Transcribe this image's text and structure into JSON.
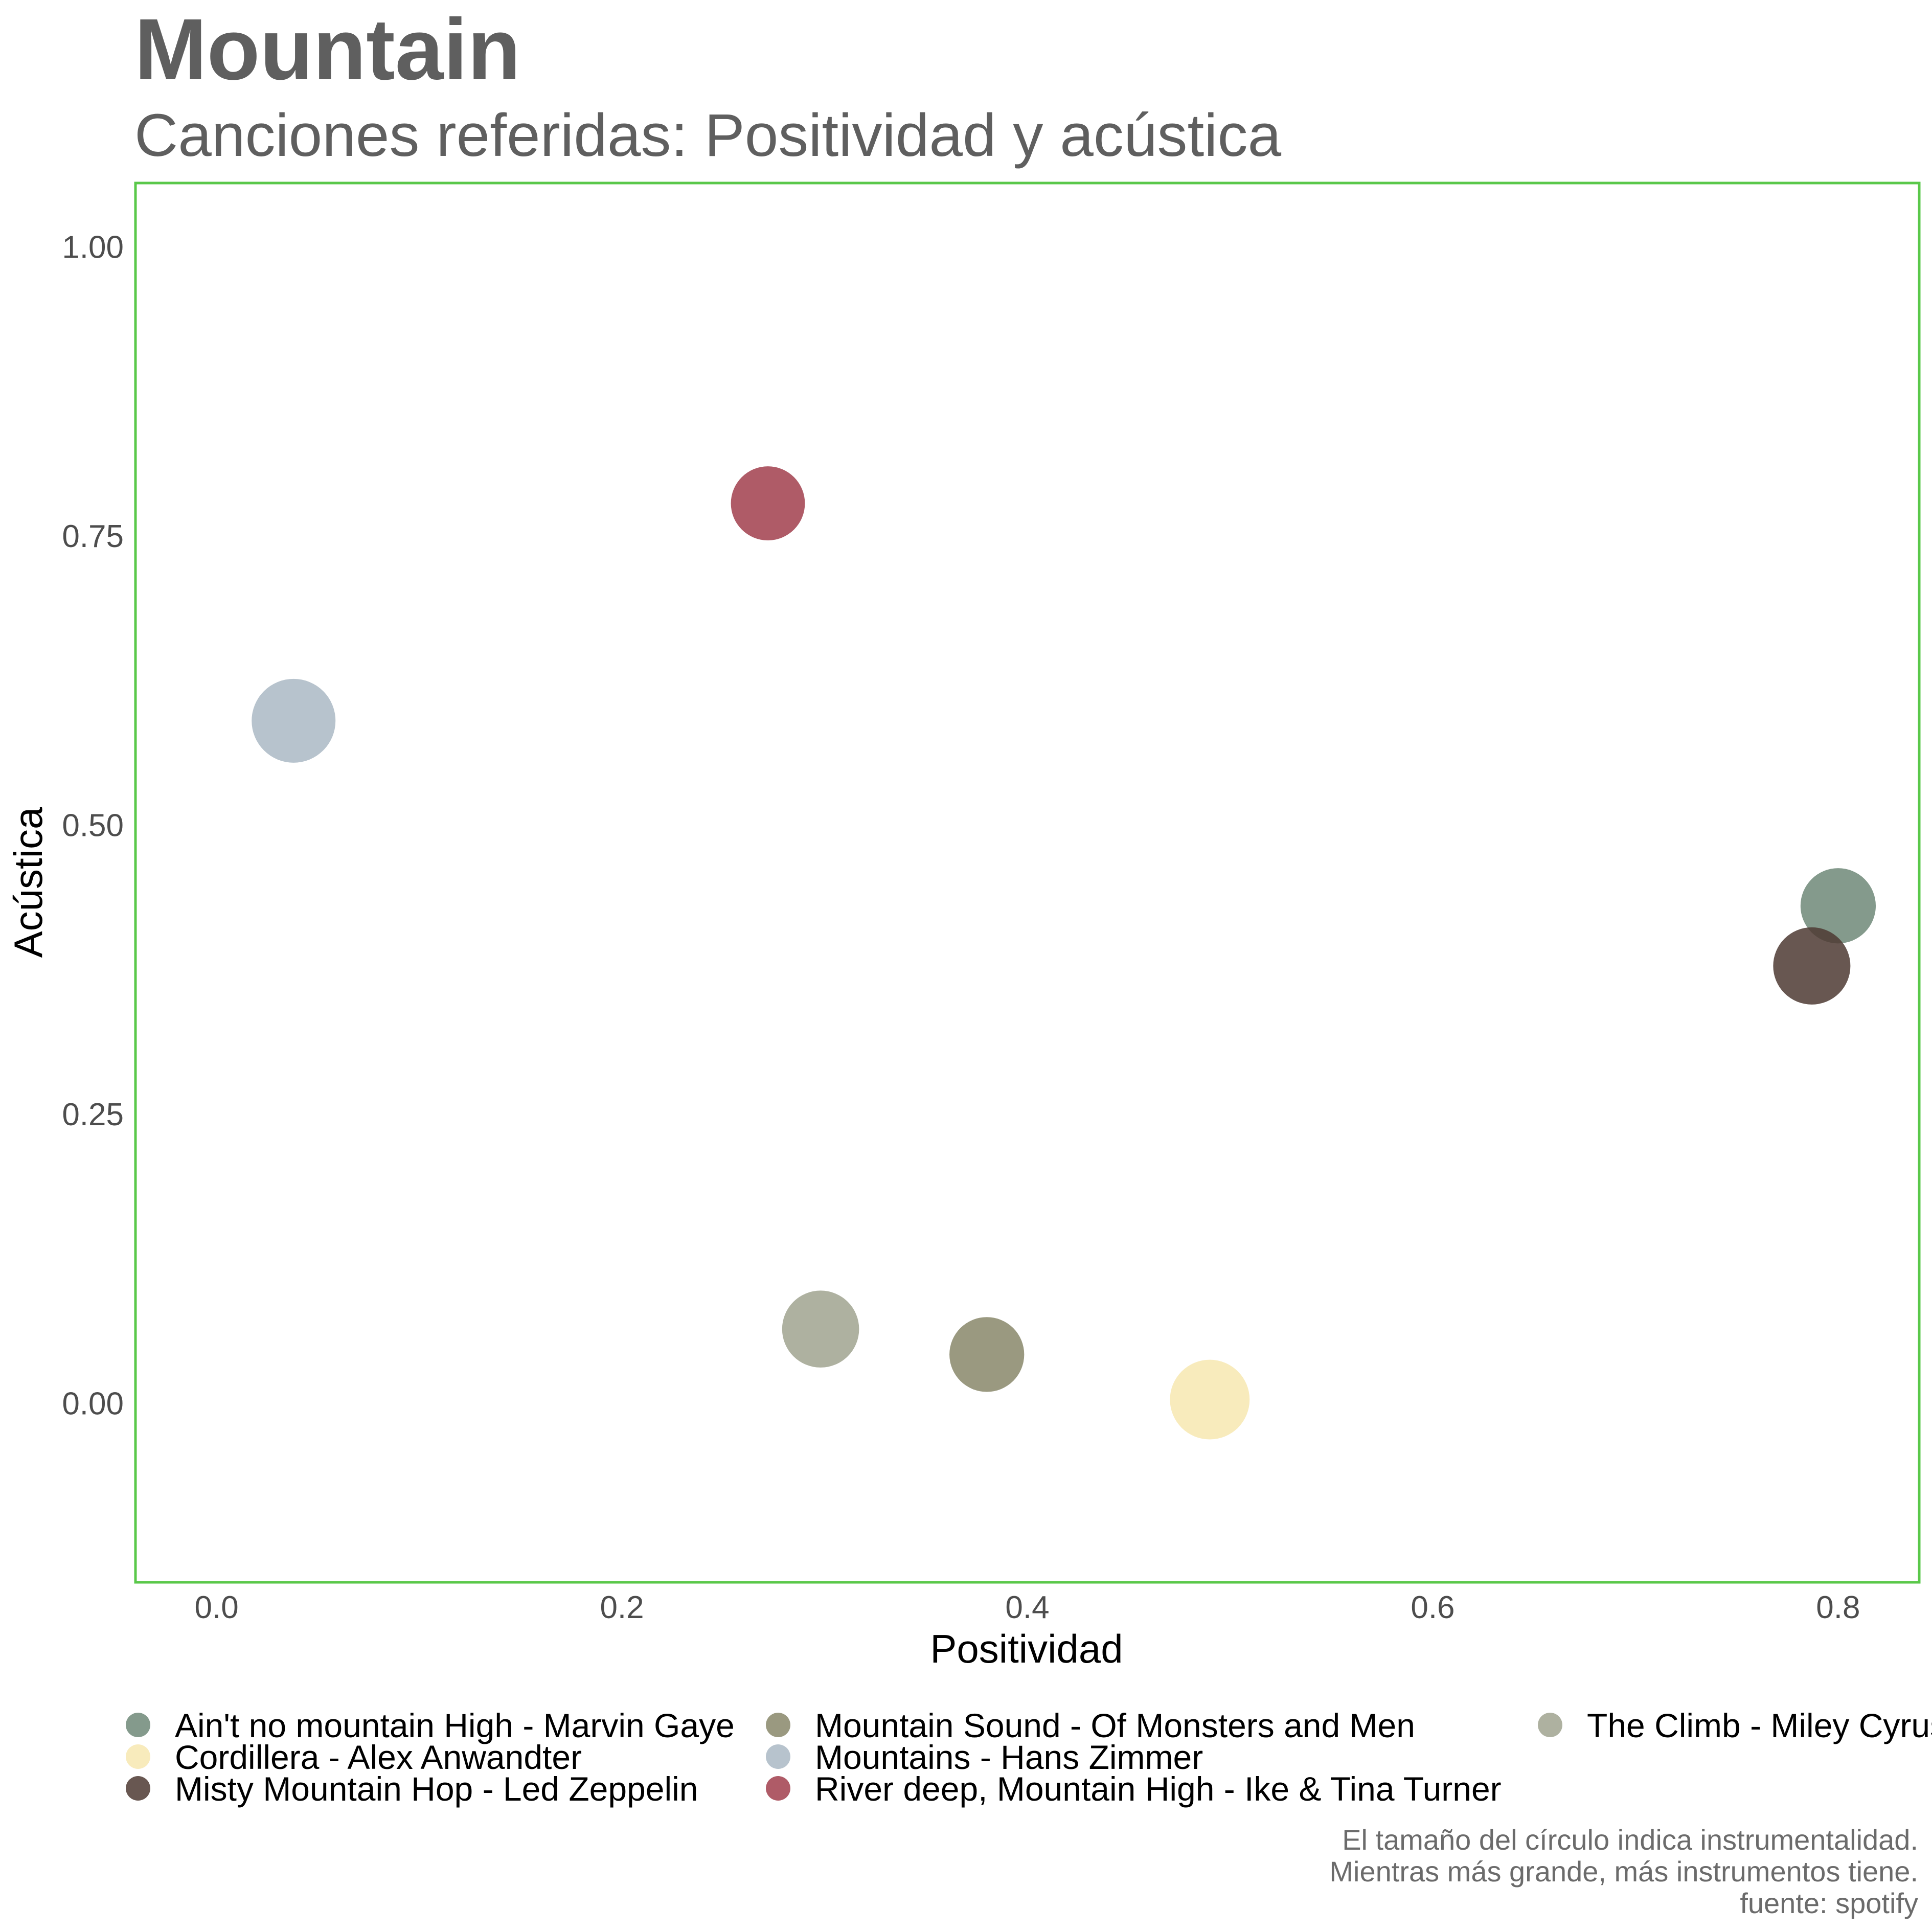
{
  "chart_data": {
    "type": "scatter",
    "title": "Mountain",
    "subtitle": "Canciones referidas: Positividad y acústica",
    "xlabel": "Positividad",
    "ylabel": "Acústica",
    "xlim": [
      -0.04,
      0.84
    ],
    "ylim": [
      -0.155,
      1.055
    ],
    "x_ticks": [
      {
        "value": 0.0,
        "label": "0.0"
      },
      {
        "value": 0.2,
        "label": "0.2"
      },
      {
        "value": 0.4,
        "label": "0.4"
      },
      {
        "value": 0.6,
        "label": "0.6"
      },
      {
        "value": 0.8,
        "label": "0.8"
      }
    ],
    "y_ticks": [
      {
        "value": 0.0,
        "label": "0.00"
      },
      {
        "value": 0.25,
        "label": "0.25"
      },
      {
        "value": 0.5,
        "label": "0.50"
      },
      {
        "value": 0.75,
        "label": "0.75"
      },
      {
        "value": 1.0,
        "label": "1.00"
      }
    ],
    "grid": false,
    "legend_position": "bottom",
    "size_encodes": "instrumentalness",
    "series": [
      {
        "name": "Ain't no mountain High - Marvin Gaye",
        "x": 0.8,
        "y": 0.43,
        "size": 0.65,
        "color": "#6e8878"
      },
      {
        "name": "Cordillera - Alex Anwandter",
        "x": 0.49,
        "y": 0.003,
        "size": 0.83,
        "color": "#f7e8b0"
      },
      {
        "name": "Misty Mountain Hop - Led Zeppelin",
        "x": 0.787,
        "y": 0.378,
        "size": 0.73,
        "color": "#4e3a32"
      },
      {
        "name": "Mountain Sound - Of Monsters and Men",
        "x": 0.38,
        "y": 0.042,
        "size": 0.63,
        "color": "#88876a"
      },
      {
        "name": "Mountains - Hans Zimmer",
        "x": 0.038,
        "y": 0.59,
        "size": 1.0,
        "color": "#aab8c4"
      },
      {
        "name": "River deep, Mountain High - Ike & Tina Turner",
        "x": 0.272,
        "y": 0.778,
        "size": 0.6,
        "color": "#a13e4c"
      },
      {
        "name": "The Climb - Miley Cyrus",
        "x": 0.298,
        "y": 0.064,
        "size": 0.72,
        "color": "#a0a38f"
      }
    ],
    "caption": [
      "El tamaño del círculo indica instrumentalidad.",
      "Mientras más grande, más instrumentos tiene.",
      "fuente: spotify"
    ]
  },
  "colors": {
    "panel_border": "#5ac84a",
    "title": "#5f5f5f",
    "tick_text": "#4d4d4d"
  }
}
